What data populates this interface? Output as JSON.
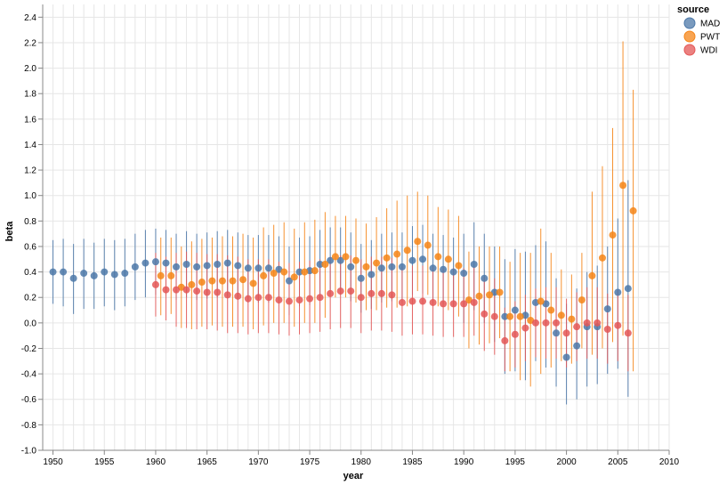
{
  "chart_data": {
    "type": "scatter",
    "xlabel": "year",
    "ylabel": "beta",
    "xlim": [
      1949,
      2010
    ],
    "ylim": [
      -1.0,
      2.5
    ],
    "x_ticks": [
      1950,
      1955,
      1960,
      1965,
      1970,
      1975,
      1980,
      1985,
      1990,
      1995,
      2000,
      2005,
      2010
    ],
    "y_ticks": [
      -1.0,
      -0.8,
      -0.6,
      -0.4,
      -0.2,
      0.0,
      0.2,
      0.4,
      0.6,
      0.8,
      1.0,
      1.2,
      1.4,
      1.6,
      1.8,
      2.0,
      2.2,
      2.4
    ],
    "grid": true,
    "legend": {
      "title": "source",
      "placement": "right"
    },
    "error_bars": true,
    "series": [
      {
        "name": "MAD",
        "color": "#4c78a8",
        "x": [
          1950,
          1951,
          1952,
          1953,
          1954,
          1955,
          1956,
          1957,
          1958,
          1959,
          1960,
          1961,
          1962,
          1963,
          1964,
          1965,
          1966,
          1967,
          1968,
          1969,
          1970,
          1971,
          1972,
          1973,
          1974,
          1975,
          1976,
          1977,
          1978,
          1979,
          1980,
          1981,
          1982,
          1983,
          1984,
          1985,
          1986,
          1987,
          1988,
          1989,
          1990,
          1991,
          1992,
          1993,
          1994,
          1995,
          1996,
          1997,
          1998,
          1999,
          2000,
          2001,
          2002,
          2003,
          2004,
          2005,
          2006
        ],
        "y": [
          0.4,
          0.4,
          0.35,
          0.39,
          0.37,
          0.4,
          0.38,
          0.39,
          0.44,
          0.47,
          0.48,
          0.47,
          0.44,
          0.46,
          0.44,
          0.45,
          0.46,
          0.47,
          0.45,
          0.43,
          0.43,
          0.43,
          0.42,
          0.33,
          0.4,
          0.41,
          0.46,
          0.49,
          0.49,
          0.44,
          0.35,
          0.38,
          0.43,
          0.44,
          0.44,
          0.49,
          0.5,
          0.43,
          0.42,
          0.4,
          0.39,
          0.46,
          0.35,
          0.24,
          0.05,
          0.1,
          0.06,
          0.16,
          0.15,
          -0.08,
          -0.27,
          -0.18,
          -0.03,
          -0.03,
          0.11,
          0.24,
          0.27
        ],
        "lower": [
          0.15,
          0.13,
          0.07,
          0.11,
          0.11,
          0.13,
          0.1,
          0.13,
          0.18,
          0.2,
          0.22,
          0.21,
          0.18,
          0.2,
          0.18,
          0.19,
          0.2,
          0.21,
          0.18,
          0.16,
          0.16,
          0.16,
          0.15,
          0.06,
          0.13,
          0.14,
          0.19,
          0.22,
          0.22,
          0.17,
          0.08,
          0.11,
          0.16,
          0.17,
          0.17,
          0.22,
          0.23,
          0.16,
          0.15,
          0.13,
          0.0,
          0.1,
          0.0,
          -0.15,
          -0.4,
          -0.38,
          -0.45,
          -0.3,
          -0.35,
          -0.5,
          -0.64,
          -0.6,
          -0.5,
          -0.48,
          -0.4,
          -0.36,
          -0.58
        ],
        "upper": [
          0.65,
          0.66,
          0.62,
          0.66,
          0.63,
          0.66,
          0.65,
          0.66,
          0.7,
          0.73,
          0.74,
          0.73,
          0.7,
          0.72,
          0.7,
          0.71,
          0.72,
          0.73,
          0.71,
          0.69,
          0.69,
          0.69,
          0.68,
          0.6,
          0.67,
          0.68,
          0.73,
          0.75,
          0.75,
          0.71,
          0.62,
          0.65,
          0.7,
          0.71,
          0.71,
          0.76,
          0.77,
          0.7,
          0.69,
          0.67,
          0.7,
          0.79,
          0.7,
          0.6,
          0.5,
          0.58,
          0.56,
          0.61,
          0.64,
          0.35,
          0.15,
          0.27,
          0.4,
          0.45,
          0.6,
          0.82,
          1.12
        ]
      },
      {
        "name": "PWT",
        "color": "#f58518",
        "x": [
          1960.5,
          1961.5,
          1962.5,
          1963.5,
          1964.5,
          1965.5,
          1966.5,
          1967.5,
          1968.5,
          1969.5,
          1970.5,
          1971.5,
          1972.5,
          1973.5,
          1974.5,
          1975.5,
          1976.5,
          1977.5,
          1978.5,
          1979.5,
          1980.5,
          1981.5,
          1982.5,
          1983.5,
          1984.5,
          1985.5,
          1986.5,
          1987.5,
          1988.5,
          1989.5,
          1990.5,
          1991.5,
          1992.5,
          1993.5,
          1994.5,
          1995.5,
          1996.5,
          1997.5,
          1998.5,
          1999.5,
          2000.5,
          2001.5,
          2002.5,
          2003.5,
          2004.5,
          2005.5,
          2006.5
        ],
        "y": [
          0.37,
          0.37,
          0.28,
          0.3,
          0.32,
          0.33,
          0.33,
          0.33,
          0.34,
          0.31,
          0.37,
          0.39,
          0.4,
          0.36,
          0.4,
          0.41,
          0.46,
          0.52,
          0.52,
          0.49,
          0.44,
          0.47,
          0.51,
          0.54,
          0.57,
          0.64,
          0.61,
          0.52,
          0.5,
          0.45,
          0.18,
          0.21,
          0.22,
          0.24,
          0.05,
          0.05,
          0.02,
          0.17,
          0.1,
          0.06,
          0.03,
          0.18,
          0.37,
          0.51,
          0.69,
          1.08,
          0.88
        ],
        "lower": [
          0.06,
          0.07,
          -0.04,
          -0.05,
          -0.03,
          -0.02,
          -0.03,
          -0.03,
          -0.03,
          -0.05,
          -0.02,
          0.0,
          0.0,
          -0.03,
          0.0,
          0.0,
          0.04,
          0.2,
          0.2,
          0.16,
          0.1,
          0.1,
          0.12,
          0.12,
          0.13,
          0.25,
          0.22,
          0.13,
          0.1,
          0.05,
          -0.2,
          -0.17,
          -0.16,
          -0.12,
          -0.38,
          -0.45,
          -0.5,
          -0.4,
          -0.35,
          -0.3,
          -0.32,
          -0.2,
          -0.25,
          -0.2,
          -0.15,
          -0.1,
          -0.38
        ],
        "upper": [
          0.67,
          0.67,
          0.6,
          0.64,
          0.66,
          0.67,
          0.68,
          0.68,
          0.7,
          0.67,
          0.75,
          0.77,
          0.79,
          0.74,
          0.79,
          0.81,
          0.87,
          0.84,
          0.84,
          0.82,
          0.78,
          0.83,
          0.9,
          0.96,
          1.0,
          1.03,
          1.0,
          0.91,
          0.89,
          0.84,
          0.56,
          0.6,
          0.6,
          0.6,
          0.48,
          0.55,
          0.55,
          0.74,
          0.55,
          0.42,
          0.38,
          0.55,
          1.03,
          1.23,
          1.53,
          2.21,
          1.83
        ]
      },
      {
        "name": "WDI",
        "color": "#e45756",
        "x": [
          1960,
          1961,
          1962,
          1963,
          1964,
          1965,
          1966,
          1967,
          1968,
          1969,
          1970,
          1971,
          1972,
          1973,
          1974,
          1975,
          1976,
          1977,
          1978,
          1979,
          1980,
          1981,
          1982,
          1983,
          1984,
          1985,
          1986,
          1987,
          1988,
          1989,
          1990,
          1991,
          1992,
          1993,
          1994,
          1995,
          1996,
          1997,
          1998,
          1999,
          2000,
          2001,
          2002,
          2003,
          2004,
          2005,
          2006
        ],
        "y": [
          0.3,
          0.26,
          0.26,
          0.26,
          0.25,
          0.24,
          0.24,
          0.22,
          0.21,
          0.19,
          0.2,
          0.2,
          0.18,
          0.17,
          0.18,
          0.19,
          0.2,
          0.23,
          0.25,
          0.25,
          0.2,
          0.23,
          0.23,
          0.22,
          0.16,
          0.17,
          0.17,
          0.16,
          0.15,
          0.15,
          0.15,
          0.16,
          0.07,
          0.05,
          -0.14,
          -0.09,
          -0.04,
          0.0,
          0.0,
          0.0,
          -0.08,
          -0.03,
          0.0,
          0.0,
          -0.05,
          -0.02,
          -0.08
        ],
        "lower": [
          0.05,
          0.02,
          -0.03,
          -0.04,
          -0.05,
          -0.05,
          -0.06,
          -0.08,
          -0.08,
          -0.09,
          -0.08,
          -0.08,
          -0.09,
          -0.1,
          -0.09,
          -0.08,
          -0.07,
          -0.05,
          -0.04,
          -0.04,
          -0.08,
          -0.06,
          -0.06,
          -0.07,
          -0.1,
          -0.09,
          -0.09,
          -0.1,
          -0.11,
          -0.11,
          -0.11,
          -0.1,
          -0.22,
          -0.25,
          -0.38,
          -0.35,
          -0.3,
          -0.27,
          -0.28,
          -0.28,
          -0.35,
          -0.3,
          -0.28,
          -0.28,
          -0.32,
          -0.3,
          -0.38
        ],
        "upper": [
          0.55,
          0.52,
          0.55,
          0.56,
          0.55,
          0.54,
          0.54,
          0.53,
          0.52,
          0.5,
          0.5,
          0.5,
          0.48,
          0.47,
          0.48,
          0.49,
          0.5,
          0.52,
          0.53,
          0.53,
          0.5,
          0.52,
          0.52,
          0.51,
          0.44,
          0.45,
          0.45,
          0.44,
          0.43,
          0.43,
          0.43,
          0.44,
          0.36,
          0.35,
          0.12,
          0.17,
          0.22,
          0.27,
          0.28,
          0.28,
          0.19,
          0.24,
          0.28,
          0.28,
          0.23,
          0.26,
          0.22
        ]
      }
    ]
  }
}
